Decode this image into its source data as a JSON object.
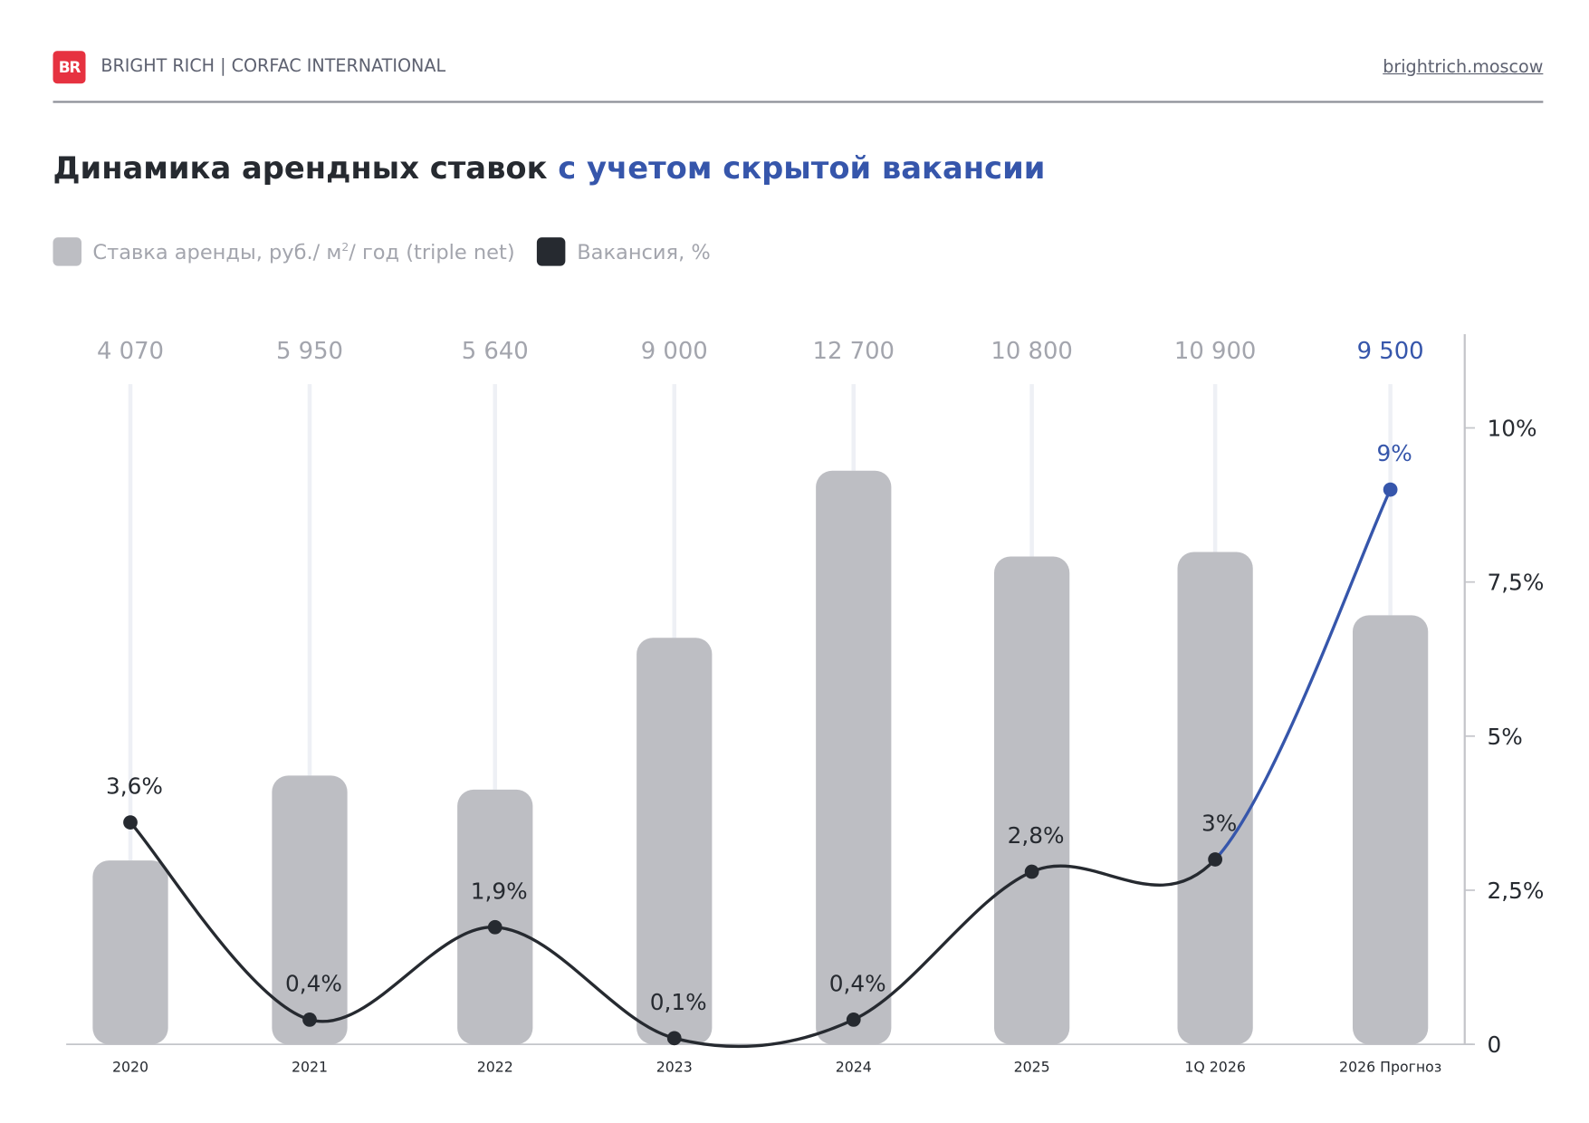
{
  "header": {
    "logo_text": "BR",
    "brand": "BRIGHT RICH | CORFAC INTERNATIONAL",
    "site": "brightrich.moscow"
  },
  "title": {
    "main": "Динамика арендных ставок",
    "accent": "с учетом скрытой вакансии"
  },
  "legend": {
    "rent": "Ставка аренды, руб./ м",
    "rent_sup": "2",
    "rent_tail": "/ год (triple net)",
    "vacancy": "Вакансия, %"
  },
  "colors": {
    "bar": "#bdbec3",
    "line": "#262a30",
    "forecast": "#3656ab",
    "value_label": "#a3a5ad"
  },
  "chart_data": {
    "type": "bar",
    "categories": [
      "2020",
      "2021",
      "2022",
      "2023",
      "2024",
      "2025",
      "1Q 2026",
      "2026 Прогноз"
    ],
    "series": [
      {
        "name": "Ставка аренды, руб./ м²/ год (triple net)",
        "type": "bar",
        "values": [
          4070,
          5950,
          5640,
          9000,
          12700,
          10800,
          10900,
          9500
        ],
        "labels": [
          "4 070",
          "5 950",
          "5 640",
          "9 000",
          "12 700",
          "10 800",
          "10 900",
          "9 500"
        ]
      },
      {
        "name": "Вакансия, %",
        "type": "line",
        "values": [
          3.6,
          0.4,
          1.9,
          0.1,
          0.4,
          2.8,
          3.0,
          9.0
        ],
        "labels": [
          "3,6%",
          "0,4%",
          "1,9%",
          "0,1%",
          "0,4%",
          "2,8%",
          "3%",
          "9%"
        ],
        "forecast_from_index": 6
      }
    ],
    "y2_axis": {
      "ticks": [
        "0",
        "2,5%",
        "5%",
        "7,5%",
        "10%"
      ],
      "tick_values": [
        0,
        2.5,
        5,
        7.5,
        10
      ],
      "range": [
        0,
        11
      ]
    }
  }
}
